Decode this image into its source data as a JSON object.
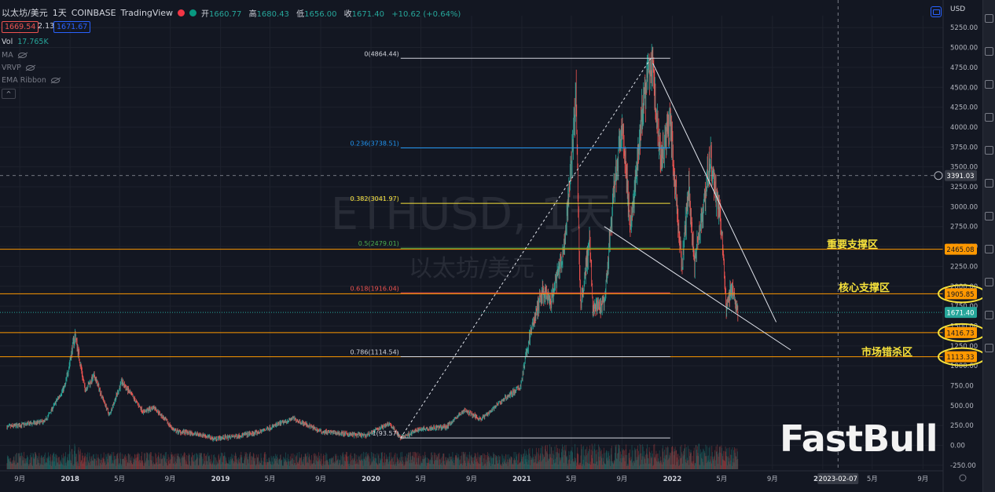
{
  "header": {
    "symbol": "以太坊/美元",
    "interval": "1天",
    "exchange": "COINBASE",
    "source": "TradingView",
    "ohlc": {
      "open_label": "开",
      "open": "1660.77",
      "high_label": "高",
      "high": "1680.43",
      "low_label": "低",
      "low": "1656.00",
      "close_label": "收",
      "close": "1671.40",
      "change": "+10.62 (+0.64%)"
    },
    "bid": "1669.54",
    "spread": "2.13",
    "ask": "1671.67"
  },
  "indicators": {
    "vol_label": "Vol",
    "vol_value": "17.765K",
    "ma": "MA",
    "vrvp": "VRVP",
    "ema_ribbon": "EMA Ribbon",
    "collapse_glyph": "^"
  },
  "currency": "USD",
  "watermark": {
    "ticker": "ETHUSD, 1天",
    "name": "以太坊/美元"
  },
  "brand_logo": "FastBull",
  "annotations": {
    "important_support": "重要支撑区",
    "core_support": "核心支撑区",
    "market_kill_zone": "市场错杀区"
  },
  "crosshair": {
    "price_label": "3391.03",
    "date_label": "2023-02-07"
  },
  "colors": {
    "background": "#131722",
    "up": "#26a69a",
    "down": "#ef5350",
    "fib_0": "#d1d4dc",
    "fib_236": "#2196f3",
    "fib_382": "#f7e23b",
    "fib_5": "#4caf50",
    "fib_618": "#ef5350",
    "fib_786": "#d1d4dc",
    "fib_1": "#d1d4dc",
    "support_line": "#ff9800",
    "annotation": "#f7e23b"
  },
  "chart_data": {
    "type": "line",
    "series_kind": "candlestick",
    "symbol": "ETHUSD",
    "y_axis": {
      "min": -300,
      "max": 5400,
      "ticks": [
        -250,
        0,
        250,
        500,
        750,
        1000,
        1250,
        1500,
        1750,
        2000,
        2250,
        2500,
        2750,
        3000,
        3250,
        3500,
        3750,
        4000,
        4250,
        4500,
        4750,
        5000,
        5250
      ],
      "tick_labels": [
        "-250.00",
        "0.00",
        "250.00",
        "500.00",
        "750.00",
        "1000.00",
        "1250.00",
        "1500.00",
        "1750.00",
        "2000.00",
        "2250.00",
        "2500.00",
        "2750.00",
        "3000.00",
        "3250.00",
        "3500.00",
        "3750.00",
        "4000.00",
        "4250.00",
        "4500.00",
        "4750.00",
        "5000.00",
        "5250.00"
      ]
    },
    "x_axis": {
      "ticks": [
        "2017-09-01",
        "2018-01-01",
        "2018-05-01",
        "2018-09-01",
        "2019-01-01",
        "2019-05-01",
        "2019-09-01",
        "2020-01-01",
        "2020-05-01",
        "2020-09-01",
        "2021-01-01",
        "2021-05-01",
        "2021-09-01",
        "2022-01-01",
        "2022-05-01",
        "2022-09-01",
        "2023-01-01",
        "2023-05-01",
        "2023-09-01"
      ],
      "tick_labels": [
        "9月",
        "2018",
        "5月",
        "9月",
        "2019",
        "5月",
        "9月",
        "2020",
        "5月",
        "9月",
        "2021",
        "5月",
        "9月",
        "2022",
        "5月",
        "9月",
        "2023",
        "5月",
        "9月"
      ]
    },
    "price_path": [
      {
        "date": "2017-08-01",
        "price": 230
      },
      {
        "date": "2017-11-01",
        "price": 300
      },
      {
        "date": "2017-12-20",
        "price": 750
      },
      {
        "date": "2018-01-13",
        "price": 1400
      },
      {
        "date": "2018-02-06",
        "price": 700
      },
      {
        "date": "2018-03-01",
        "price": 870
      },
      {
        "date": "2018-04-06",
        "price": 380
      },
      {
        "date": "2018-05-06",
        "price": 800
      },
      {
        "date": "2018-06-28",
        "price": 420
      },
      {
        "date": "2018-07-24",
        "price": 480
      },
      {
        "date": "2018-09-12",
        "price": 180
      },
      {
        "date": "2018-11-20",
        "price": 130
      },
      {
        "date": "2018-12-15",
        "price": 85
      },
      {
        "date": "2019-02-01",
        "price": 110
      },
      {
        "date": "2019-04-01",
        "price": 160
      },
      {
        "date": "2019-06-26",
        "price": 340
      },
      {
        "date": "2019-09-01",
        "price": 175
      },
      {
        "date": "2019-12-18",
        "price": 120
      },
      {
        "date": "2020-02-14",
        "price": 280
      },
      {
        "date": "2020-03-13",
        "price": 95
      },
      {
        "date": "2020-05-01",
        "price": 210
      },
      {
        "date": "2020-07-01",
        "price": 230
      },
      {
        "date": "2020-08-14",
        "price": 440
      },
      {
        "date": "2020-09-24",
        "price": 330
      },
      {
        "date": "2020-11-25",
        "price": 610
      },
      {
        "date": "2020-12-28",
        "price": 730
      },
      {
        "date": "2021-01-20",
        "price": 1380
      },
      {
        "date": "2021-02-20",
        "price": 1940
      },
      {
        "date": "2021-03-12",
        "price": 1780
      },
      {
        "date": "2021-04-15",
        "price": 2500
      },
      {
        "date": "2021-05-12",
        "price": 4350
      },
      {
        "date": "2021-05-23",
        "price": 1750
      },
      {
        "date": "2021-06-15",
        "price": 2600
      },
      {
        "date": "2021-06-22",
        "price": 1720
      },
      {
        "date": "2021-07-20",
        "price": 1750
      },
      {
        "date": "2021-08-14",
        "price": 3300
      },
      {
        "date": "2021-09-03",
        "price": 4000
      },
      {
        "date": "2021-09-21",
        "price": 2700
      },
      {
        "date": "2021-10-20",
        "price": 4200
      },
      {
        "date": "2021-11-10",
        "price": 4864
      },
      {
        "date": "2021-12-04",
        "price": 3600
      },
      {
        "date": "2021-12-27",
        "price": 4100
      },
      {
        "date": "2022-01-24",
        "price": 2200
      },
      {
        "date": "2022-02-10",
        "price": 3250
      },
      {
        "date": "2022-02-24",
        "price": 2300
      },
      {
        "date": "2022-04-03",
        "price": 3580
      },
      {
        "date": "2022-04-30",
        "price": 2750
      },
      {
        "date": "2022-05-12",
        "price": 1730
      },
      {
        "date": "2022-05-25",
        "price": 2000
      },
      {
        "date": "2022-06-09",
        "price": 1671
      }
    ],
    "fibonacci": [
      {
        "level": "0",
        "price": 4864.44,
        "label": "0(4864.44)"
      },
      {
        "level": "0.236",
        "price": 3738.51,
        "label": "0.236(3738.51)"
      },
      {
        "level": "0.382",
        "price": 3041.97,
        "label": "0.382(3041.97)"
      },
      {
        "level": "0.5",
        "price": 2479.01,
        "label": "0.5(2479.01)"
      },
      {
        "level": "0.618",
        "price": 1916.04,
        "label": "0.618(1916.04)"
      },
      {
        "level": "0.786",
        "price": 1114.54,
        "label": "0.786(1114.54)"
      },
      {
        "level": "1",
        "price": 93.57,
        "label": "1(93.57)"
      }
    ],
    "fib_range_dates": [
      "2020-03-13",
      "2021-12-27"
    ],
    "horizontal_levels": [
      {
        "price": 2465.08,
        "label": "2465.08"
      },
      {
        "price": 1905.85,
        "label": "1905.85"
      },
      {
        "price": 1416.73,
        "label": "1416.73"
      },
      {
        "price": 1113.33,
        "label": "1113.33"
      }
    ],
    "last_price": {
      "price": 1671.4,
      "label": "1671.40"
    },
    "trendlines": [
      {
        "from": {
          "date": "2020-03-13",
          "price": 93.57
        },
        "to": {
          "date": "2021-11-10",
          "price": 4864.44
        },
        "style": "dashed"
      },
      {
        "from": {
          "date": "2021-11-15",
          "price": 4800
        },
        "to": {
          "date": "2022-09-10",
          "price": 1550
        },
        "style": "solid"
      },
      {
        "from": {
          "date": "2021-07-20",
          "price": 2750
        },
        "to": {
          "date": "2022-10-15",
          "price": 1200
        },
        "style": "solid"
      }
    ]
  }
}
